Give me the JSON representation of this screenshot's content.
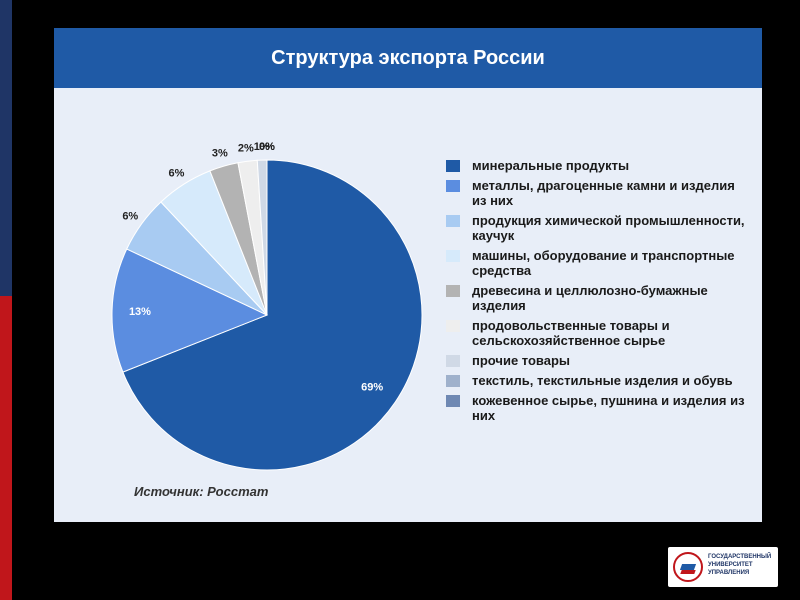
{
  "slide": {
    "title": "Структура экспорта России",
    "source": "Источник: Росстат"
  },
  "logo": {
    "lines": [
      "ГОСУДАРСТВЕННЫЙ",
      "УНИВЕРСИТЕТ",
      "УПРАВЛЕНИЯ"
    ],
    "colors": {
      "blue": "#1f5aa6",
      "red": "#c0161b"
    }
  },
  "colors": {
    "background": "#000000",
    "title_bar": "#1f5aa6",
    "chart_bg": "#e8eef8",
    "stripe_blue": "#1f3566",
    "stripe_red": "#c0161b"
  },
  "chart_data": {
    "type": "pie",
    "title": "Структура экспорта России",
    "legend_position": "right",
    "slices": [
      {
        "label": "минеральные продукты",
        "value": 69,
        "display": "69%",
        "color": "#1f5aa6"
      },
      {
        "label": "металлы, драгоценные камни и изделия из них",
        "value": 13,
        "display": "13%",
        "color": "#5b8de0"
      },
      {
        "label": "продукция химической промышленности, каучук",
        "value": 6,
        "display": "6%",
        "color": "#a8cbf2"
      },
      {
        "label": "машины, оборудование и транспортные средства",
        "value": 6,
        "display": "6%",
        "color": "#d6eafb"
      },
      {
        "label": "древесина и целлюлозно-бумажные изделия",
        "value": 3,
        "display": "3%",
        "color": "#b3b3b3"
      },
      {
        "label": "продовольственные товары и сельскохозяйственное сырье",
        "value": 2,
        "display": "2%",
        "color": "#eeeeee"
      },
      {
        "label": "прочие товары",
        "value": 1,
        "display": "1%",
        "color": "#d0d9e6"
      },
      {
        "label": "текстиль, текстильные изделия и обувь",
        "value": 0,
        "display": "0%",
        "color": "#9fb1cc"
      },
      {
        "label": "кожевенное сырье, пушнина и изделия из них",
        "value": 0,
        "display": "0%",
        "color": "#6e88b3"
      }
    ]
  }
}
